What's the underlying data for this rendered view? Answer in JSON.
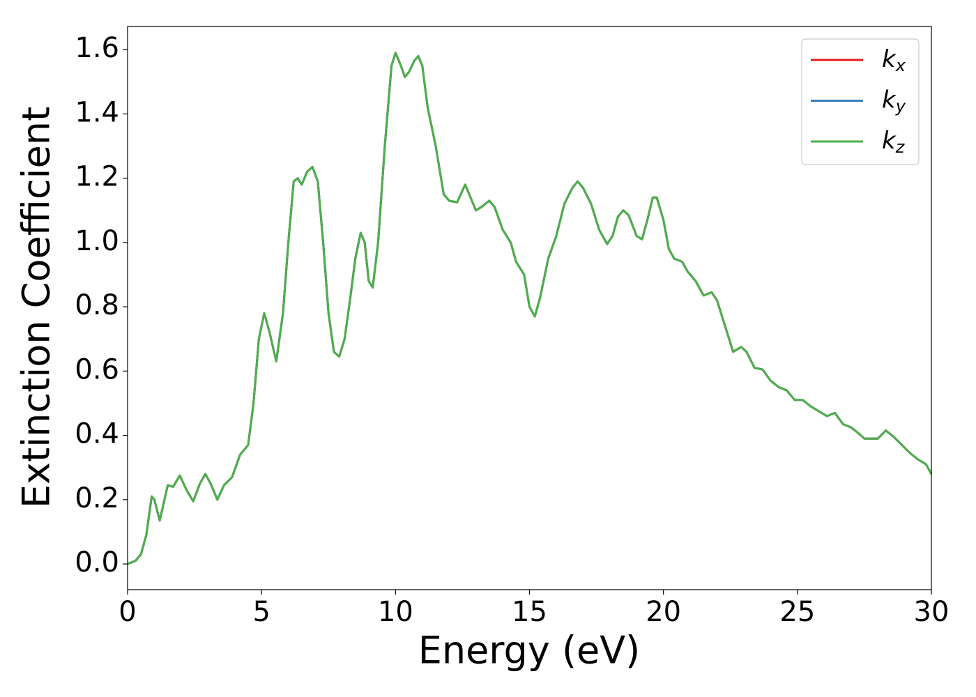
{
  "chart_data": {
    "type": "line",
    "xlabel": "Energy (eV)",
    "ylabel": "Extinction Coefficient",
    "xlim": [
      0,
      30
    ],
    "ylim": [
      -0.08,
      1.672
    ],
    "xticks": [
      0,
      5,
      10,
      15,
      20,
      25,
      30
    ],
    "yticks": [
      {
        "value": 0,
        "label": "0.0"
      },
      {
        "value": 0.2,
        "label": "0.2"
      },
      {
        "value": 0.4,
        "label": "0.4"
      },
      {
        "value": 0.6,
        "label": "0.6"
      },
      {
        "value": 0.8,
        "label": "0.8"
      },
      {
        "value": 1.0,
        "label": "1.0"
      },
      {
        "value": 1.2,
        "label": "1.2"
      },
      {
        "value": 1.4,
        "label": "1.4"
      },
      {
        "value": 1.6,
        "label": "1.6"
      }
    ],
    "legend": "upper right",
    "x": [
      0,
      0.3,
      0.5,
      0.7,
      0.9,
      1.0,
      1.2,
      1.35,
      1.5,
      1.7,
      1.95,
      2.2,
      2.45,
      2.7,
      2.9,
      3.1,
      3.35,
      3.6,
      3.9,
      4.2,
      4.5,
      4.7,
      4.9,
      5.1,
      5.3,
      5.55,
      5.8,
      6.0,
      6.2,
      6.35,
      6.5,
      6.7,
      6.9,
      7.1,
      7.3,
      7.5,
      7.7,
      7.9,
      8.1,
      8.3,
      8.5,
      8.7,
      8.85,
      9.0,
      9.15,
      9.35,
      9.6,
      9.85,
      10.0,
      10.2,
      10.35,
      10.5,
      10.7,
      10.85,
      11.0,
      11.2,
      11.5,
      11.8,
      12.0,
      12.3,
      12.6,
      12.8,
      13.0,
      13.2,
      13.5,
      13.7,
      14.0,
      14.3,
      14.5,
      14.8,
      15.0,
      15.2,
      15.4,
      15.7,
      16.0,
      16.3,
      16.6,
      16.8,
      17.0,
      17.3,
      17.6,
      17.9,
      18.1,
      18.3,
      18.5,
      18.7,
      19.0,
      19.2,
      19.4,
      19.6,
      19.75,
      20.0,
      20.2,
      20.4,
      20.7,
      20.9,
      21.2,
      21.5,
      21.8,
      22.0,
      22.3,
      22.6,
      22.9,
      23.1,
      23.4,
      23.7,
      24.0,
      24.3,
      24.6,
      24.9,
      25.2,
      25.5,
      25.8,
      26.1,
      26.4,
      26.7,
      27.0,
      27.3,
      27.5,
      27.8,
      28.0,
      28.3,
      28.6,
      28.9,
      29.2,
      29.5,
      29.8,
      30.0
    ],
    "series": [
      {
        "name": "kx",
        "color": "#e41a1c",
        "values": [
          0.0,
          0.01,
          0.03,
          0.09,
          0.21,
          0.2,
          0.135,
          0.19,
          0.245,
          0.24,
          0.275,
          0.23,
          0.195,
          0.25,
          0.28,
          0.25,
          0.2,
          0.245,
          0.27,
          0.34,
          0.37,
          0.5,
          0.7,
          0.78,
          0.72,
          0.63,
          0.78,
          1.0,
          1.19,
          1.2,
          1.18,
          1.22,
          1.235,
          1.19,
          1.0,
          0.78,
          0.66,
          0.645,
          0.7,
          0.82,
          0.95,
          1.03,
          1.0,
          0.88,
          0.86,
          1.0,
          1.3,
          1.55,
          1.59,
          1.55,
          1.515,
          1.53,
          1.565,
          1.58,
          1.55,
          1.42,
          1.3,
          1.15,
          1.13,
          1.125,
          1.18,
          1.14,
          1.1,
          1.11,
          1.13,
          1.11,
          1.04,
          1.0,
          0.94,
          0.9,
          0.8,
          0.77,
          0.83,
          0.95,
          1.02,
          1.12,
          1.17,
          1.19,
          1.17,
          1.12,
          1.04,
          0.995,
          1.02,
          1.08,
          1.1,
          1.085,
          1.02,
          1.01,
          1.07,
          1.14,
          1.14,
          1.07,
          0.98,
          0.95,
          0.94,
          0.91,
          0.88,
          0.835,
          0.845,
          0.82,
          0.74,
          0.66,
          0.675,
          0.66,
          0.61,
          0.605,
          0.57,
          0.55,
          0.54,
          0.51,
          0.51,
          0.49,
          0.475,
          0.46,
          0.47,
          0.435,
          0.425,
          0.405,
          0.39,
          0.39,
          0.39,
          0.415,
          0.395,
          0.37,
          0.345,
          0.325,
          0.31,
          0.28
        ]
      },
      {
        "name": "ky",
        "color": "#377eb8",
        "values": [
          0.0,
          0.01,
          0.03,
          0.09,
          0.21,
          0.2,
          0.135,
          0.19,
          0.245,
          0.24,
          0.275,
          0.23,
          0.195,
          0.25,
          0.28,
          0.25,
          0.2,
          0.245,
          0.27,
          0.34,
          0.37,
          0.5,
          0.7,
          0.78,
          0.72,
          0.63,
          0.78,
          1.0,
          1.19,
          1.2,
          1.18,
          1.22,
          1.235,
          1.19,
          1.0,
          0.78,
          0.66,
          0.645,
          0.7,
          0.82,
          0.95,
          1.03,
          1.0,
          0.88,
          0.86,
          1.0,
          1.3,
          1.55,
          1.59,
          1.55,
          1.515,
          1.53,
          1.565,
          1.58,
          1.55,
          1.42,
          1.3,
          1.15,
          1.13,
          1.125,
          1.18,
          1.14,
          1.1,
          1.11,
          1.13,
          1.11,
          1.04,
          1.0,
          0.94,
          0.9,
          0.8,
          0.77,
          0.83,
          0.95,
          1.02,
          1.12,
          1.17,
          1.19,
          1.17,
          1.12,
          1.04,
          0.995,
          1.02,
          1.08,
          1.1,
          1.085,
          1.02,
          1.01,
          1.07,
          1.14,
          1.14,
          1.07,
          0.98,
          0.95,
          0.94,
          0.91,
          0.88,
          0.835,
          0.845,
          0.82,
          0.74,
          0.66,
          0.675,
          0.66,
          0.61,
          0.605,
          0.57,
          0.55,
          0.54,
          0.51,
          0.51,
          0.49,
          0.475,
          0.46,
          0.47,
          0.435,
          0.425,
          0.405,
          0.39,
          0.39,
          0.39,
          0.415,
          0.395,
          0.37,
          0.345,
          0.325,
          0.31,
          0.28
        ]
      },
      {
        "name": "kz",
        "color": "#4daf4a",
        "values": [
          0.0,
          0.01,
          0.03,
          0.09,
          0.21,
          0.2,
          0.135,
          0.19,
          0.245,
          0.24,
          0.275,
          0.23,
          0.195,
          0.25,
          0.28,
          0.25,
          0.2,
          0.245,
          0.27,
          0.34,
          0.37,
          0.5,
          0.7,
          0.78,
          0.72,
          0.63,
          0.78,
          1.0,
          1.19,
          1.2,
          1.18,
          1.22,
          1.235,
          1.19,
          1.0,
          0.78,
          0.66,
          0.645,
          0.7,
          0.82,
          0.95,
          1.03,
          1.0,
          0.88,
          0.86,
          1.0,
          1.3,
          1.55,
          1.59,
          1.55,
          1.515,
          1.53,
          1.565,
          1.58,
          1.55,
          1.42,
          1.3,
          1.15,
          1.13,
          1.125,
          1.18,
          1.14,
          1.1,
          1.11,
          1.13,
          1.11,
          1.04,
          1.0,
          0.94,
          0.9,
          0.8,
          0.77,
          0.83,
          0.95,
          1.02,
          1.12,
          1.17,
          1.19,
          1.17,
          1.12,
          1.04,
          0.995,
          1.02,
          1.08,
          1.1,
          1.085,
          1.02,
          1.01,
          1.07,
          1.14,
          1.14,
          1.07,
          0.98,
          0.95,
          0.94,
          0.91,
          0.88,
          0.835,
          0.845,
          0.82,
          0.74,
          0.66,
          0.675,
          0.66,
          0.61,
          0.605,
          0.57,
          0.55,
          0.54,
          0.51,
          0.51,
          0.49,
          0.475,
          0.46,
          0.47,
          0.435,
          0.425,
          0.405,
          0.39,
          0.39,
          0.39,
          0.415,
          0.395,
          0.37,
          0.345,
          0.325,
          0.31,
          0.28
        ]
      }
    ]
  }
}
